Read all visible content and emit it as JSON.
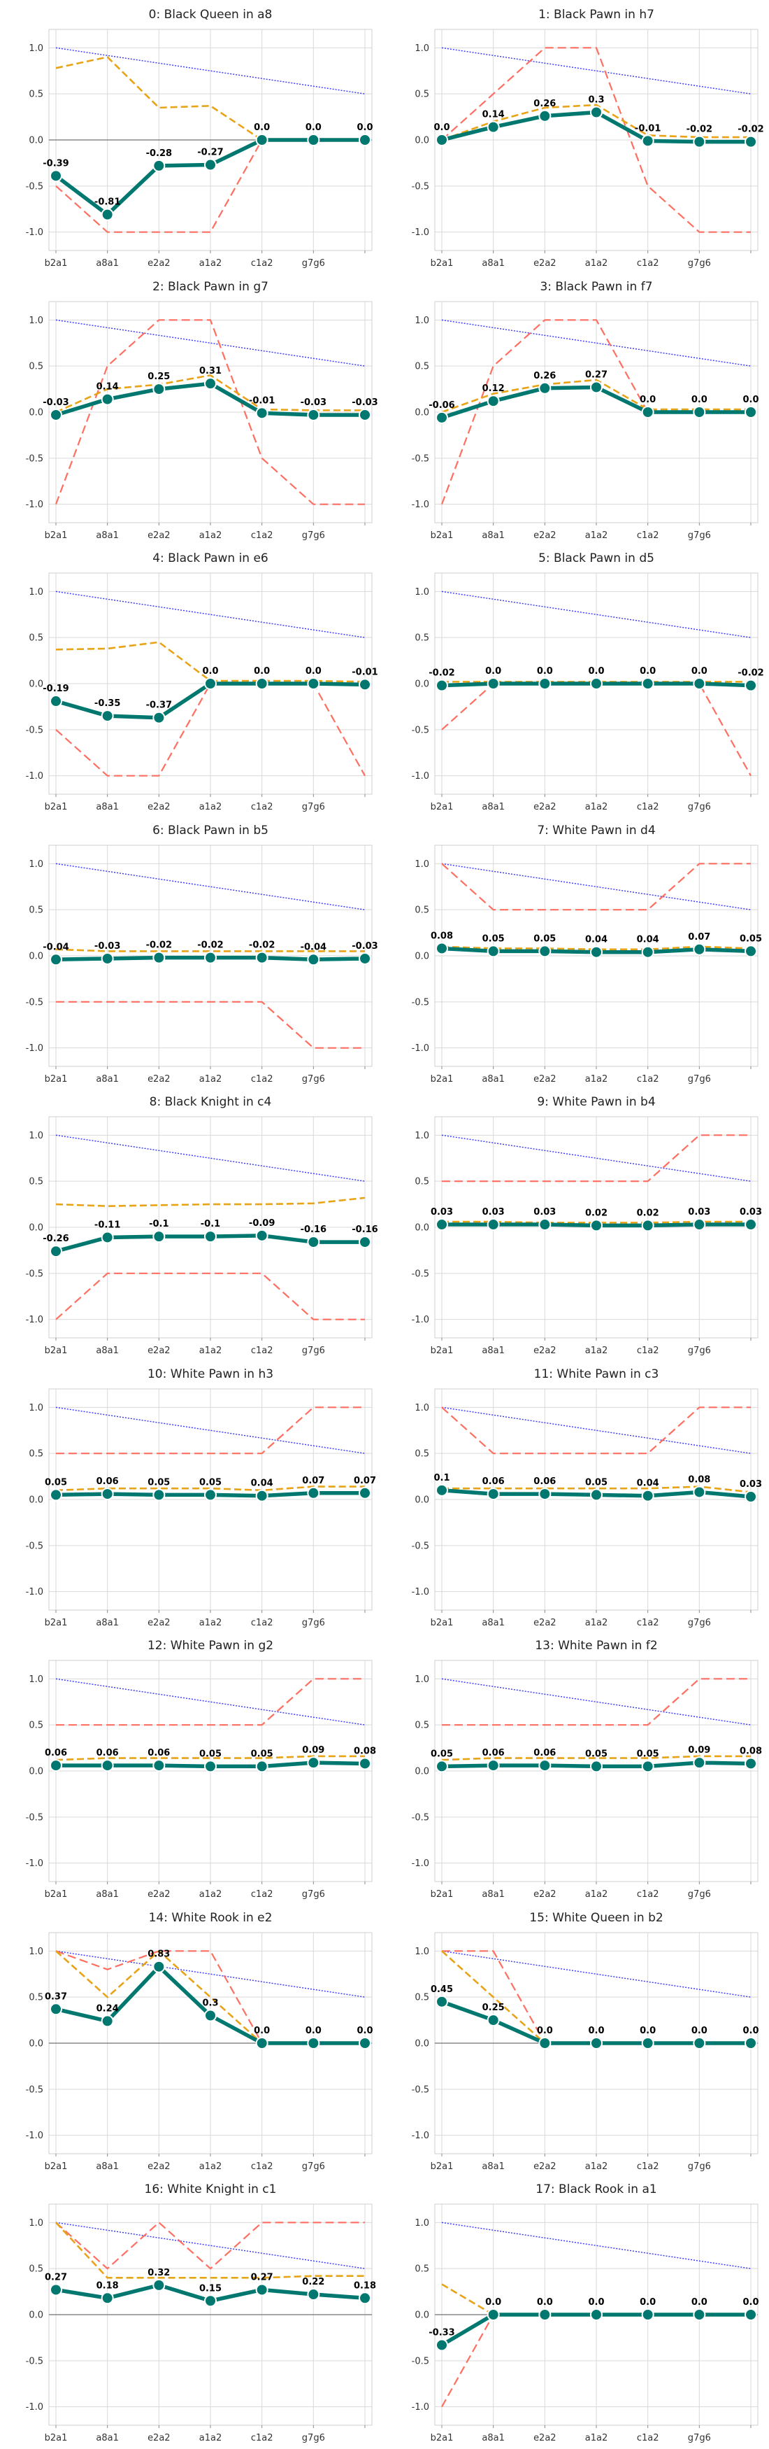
{
  "chart_data": {
    "type": "line",
    "layout": {
      "rows": 9,
      "cols": 2
    },
    "x_categories": [
      "b2a1",
      "a8a1",
      "e2a2",
      "a1a2",
      "c1a2",
      "g7g6",
      ""
    ],
    "y_ticks": [
      "1.0",
      "0.5",
      "0.0",
      "-0.5",
      "-1.0"
    ],
    "ylim": [
      -1.2,
      1.2
    ],
    "colors": {
      "main": "#00786f",
      "main_edge": "#ffffff",
      "orange": "#e8a317",
      "red": "#ff6f61",
      "blue": "#3333ff",
      "zero": "#888888"
    },
    "panels": [
      {
        "title": "0: Black Queen in a8",
        "main": [
          -0.39,
          -0.81,
          -0.28,
          -0.27,
          0.0,
          0.0,
          0.0
        ],
        "labels": [
          "-0.39",
          "-0.81",
          "-0.28",
          "-0.27",
          "0.0",
          "0.0",
          "0.0"
        ],
        "orange": [
          0.78,
          0.9,
          0.35,
          0.37,
          0.0,
          0.0,
          0.0
        ],
        "red": [
          -0.5,
          -1.0,
          -1.0,
          -1.0,
          0.0,
          0.0,
          0.0
        ],
        "blue": [
          1.0,
          0.5
        ],
        "zero_line": true
      },
      {
        "title": "1: Black Pawn in h7",
        "main": [
          0.0,
          0.14,
          0.26,
          0.3,
          -0.01,
          -0.02,
          -0.02
        ],
        "labels": [
          "0.0",
          "0.14",
          "0.26",
          "0.3",
          "-0.01",
          "-0.02",
          "-0.02"
        ],
        "orange": [
          0.0,
          0.2,
          0.35,
          0.38,
          0.05,
          0.03,
          0.03
        ],
        "red": [
          0.0,
          0.5,
          1.0,
          1.0,
          -0.5,
          -1.0,
          -1.0
        ],
        "blue": [
          1.0,
          0.5
        ],
        "zero_line": false
      },
      {
        "title": "2: Black Pawn in g7",
        "main": [
          -0.03,
          0.14,
          0.25,
          0.31,
          -0.01,
          -0.03,
          -0.03
        ],
        "labels": [
          "-0.03",
          "0.14",
          "0.25",
          "0.31",
          "-0.01",
          "-0.03",
          "-0.03"
        ],
        "orange": [
          0.0,
          0.25,
          0.3,
          0.4,
          0.03,
          0.02,
          0.02
        ],
        "red": [
          -1.0,
          0.5,
          1.0,
          1.0,
          -0.5,
          -1.0,
          -1.0
        ],
        "blue": [
          1.0,
          0.5
        ],
        "zero_line": false
      },
      {
        "title": "3: Black Pawn in f7",
        "main": [
          -0.06,
          0.12,
          0.26,
          0.27,
          0.0,
          0.0,
          0.0
        ],
        "labels": [
          "-0.06",
          "0.12",
          "0.26",
          "0.27",
          "0.0",
          "0.0",
          "0.0"
        ],
        "orange": [
          0.0,
          0.2,
          0.3,
          0.35,
          0.03,
          0.03,
          0.03
        ],
        "red": [
          -1.0,
          0.5,
          1.0,
          1.0,
          0.0,
          0.0,
          0.0
        ],
        "blue": [
          1.0,
          0.5
        ],
        "zero_line": false
      },
      {
        "title": "4: Black Pawn in e6",
        "main": [
          -0.19,
          -0.35,
          -0.37,
          0.0,
          0.0,
          0.0,
          -0.01
        ],
        "labels": [
          "-0.19",
          "-0.35",
          "-0.37",
          "0.0",
          "0.0",
          "0.0",
          "-0.01"
        ],
        "orange": [
          0.37,
          0.38,
          0.45,
          0.03,
          0.03,
          0.03,
          0.02
        ],
        "red": [
          -0.5,
          -1.0,
          -1.0,
          0.0,
          0.0,
          0.0,
          -1.0
        ],
        "blue": [
          1.0,
          0.5
        ],
        "zero_line": false
      },
      {
        "title": "5: Black Pawn in d5",
        "main": [
          -0.02,
          0.0,
          0.0,
          0.0,
          0.0,
          0.0,
          -0.02
        ],
        "labels": [
          "-0.02",
          "0.0",
          "0.0",
          "0.0",
          "0.0",
          "0.0",
          "-0.02"
        ],
        "orange": [
          0.02,
          0.02,
          0.02,
          0.02,
          0.02,
          0.02,
          0.02
        ],
        "red": [
          -0.5,
          0.0,
          0.0,
          0.0,
          0.0,
          0.0,
          -1.0
        ],
        "blue": [
          1.0,
          0.5
        ],
        "zero_line": false
      },
      {
        "title": "6: Black Pawn in b5",
        "main": [
          -0.04,
          -0.03,
          -0.02,
          -0.02,
          -0.02,
          -0.04,
          -0.03
        ],
        "labels": [
          "-0.04",
          "-0.03",
          "-0.02",
          "-0.02",
          "-0.02",
          "-0.04",
          "-0.03"
        ],
        "orange": [
          0.07,
          0.05,
          0.05,
          0.05,
          0.05,
          0.05,
          0.05
        ],
        "red": [
          -0.5,
          -0.5,
          -0.5,
          -0.5,
          -0.5,
          -1.0,
          -1.0
        ],
        "blue": [
          1.0,
          0.5
        ],
        "zero_line": false
      },
      {
        "title": "7: White Pawn in d4",
        "main": [
          0.08,
          0.05,
          0.05,
          0.04,
          0.04,
          0.07,
          0.05
        ],
        "labels": [
          "0.08",
          "0.05",
          "0.05",
          "0.04",
          "0.04",
          "0.07",
          "0.05"
        ],
        "orange": [
          0.1,
          0.08,
          0.08,
          0.07,
          0.07,
          0.1,
          0.08
        ],
        "red": [
          1.0,
          0.5,
          0.5,
          0.5,
          0.5,
          1.0,
          1.0
        ],
        "blue": [
          1.0,
          0.5
        ],
        "zero_line": false
      },
      {
        "title": "8: Black Knight in c4",
        "main": [
          -0.26,
          -0.11,
          -0.1,
          -0.1,
          -0.09,
          -0.16,
          -0.16
        ],
        "labels": [
          "-0.26",
          "-0.11",
          "-0.1",
          "-0.1",
          "-0.09",
          "-0.16",
          "-0.16"
        ],
        "orange": [
          0.25,
          0.23,
          0.24,
          0.25,
          0.25,
          0.26,
          0.32
        ],
        "red": [
          -1.0,
          -0.5,
          -0.5,
          -0.5,
          -0.5,
          -1.0,
          -1.0
        ],
        "blue": [
          1.0,
          0.5
        ],
        "zero_line": false
      },
      {
        "title": "9: White Pawn in b4",
        "main": [
          0.03,
          0.03,
          0.03,
          0.02,
          0.02,
          0.03,
          0.03
        ],
        "labels": [
          "0.03",
          "0.03",
          "0.03",
          "0.02",
          "0.02",
          "0.03",
          "0.03"
        ],
        "orange": [
          0.06,
          0.06,
          0.05,
          0.05,
          0.05,
          0.06,
          0.06
        ],
        "red": [
          0.5,
          0.5,
          0.5,
          0.5,
          0.5,
          1.0,
          1.0
        ],
        "blue": [
          1.0,
          0.5
        ],
        "zero_line": false
      },
      {
        "title": "10: White Pawn in h3",
        "main": [
          0.05,
          0.06,
          0.05,
          0.05,
          0.04,
          0.07,
          0.07
        ],
        "labels": [
          "0.05",
          "0.06",
          "0.05",
          "0.05",
          "0.04",
          "0.07",
          "0.07"
        ],
        "orange": [
          0.1,
          0.12,
          0.12,
          0.12,
          0.1,
          0.14,
          0.14
        ],
        "red": [
          0.5,
          0.5,
          0.5,
          0.5,
          0.5,
          1.0,
          1.0
        ],
        "blue": [
          1.0,
          0.5
        ],
        "zero_line": false
      },
      {
        "title": "11: White Pawn in c3",
        "main": [
          0.1,
          0.06,
          0.06,
          0.05,
          0.04,
          0.08,
          0.03
        ],
        "labels": [
          "0.1",
          "0.06",
          "0.06",
          "0.05",
          "0.04",
          "0.08",
          "0.03"
        ],
        "orange": [
          0.12,
          0.12,
          0.12,
          0.12,
          0.12,
          0.14,
          0.08
        ],
        "red": [
          1.0,
          0.5,
          0.5,
          0.5,
          0.5,
          1.0,
          1.0
        ],
        "blue": [
          1.0,
          0.5
        ],
        "zero_line": false
      },
      {
        "title": "12: White Pawn in g2",
        "main": [
          0.06,
          0.06,
          0.06,
          0.05,
          0.05,
          0.09,
          0.08
        ],
        "labels": [
          "0.06",
          "0.06",
          "0.06",
          "0.05",
          "0.05",
          "0.09",
          "0.08"
        ],
        "orange": [
          0.12,
          0.14,
          0.14,
          0.14,
          0.14,
          0.16,
          0.16
        ],
        "red": [
          0.5,
          0.5,
          0.5,
          0.5,
          0.5,
          1.0,
          1.0
        ],
        "blue": [
          1.0,
          0.5
        ],
        "zero_line": false
      },
      {
        "title": "13: White Pawn in f2",
        "main": [
          0.05,
          0.06,
          0.06,
          0.05,
          0.05,
          0.09,
          0.08
        ],
        "labels": [
          "0.05",
          "0.06",
          "0.06",
          "0.05",
          "0.05",
          "0.09",
          "0.08"
        ],
        "orange": [
          0.12,
          0.14,
          0.14,
          0.14,
          0.14,
          0.16,
          0.16
        ],
        "red": [
          0.5,
          0.5,
          0.5,
          0.5,
          0.5,
          1.0,
          1.0
        ],
        "blue": [
          1.0,
          0.5
        ],
        "zero_line": false
      },
      {
        "title": "14: White Rook in e2",
        "main": [
          0.37,
          0.24,
          0.83,
          0.3,
          0.0,
          0.0,
          0.0
        ],
        "labels": [
          "0.37",
          "0.24",
          "0.83",
          "0.3",
          "0.0",
          "0.0",
          "0.0"
        ],
        "orange": [
          1.0,
          0.5,
          1.0,
          0.5,
          0.0,
          0.0,
          0.0
        ],
        "red": [
          1.0,
          0.8,
          1.0,
          1.0,
          0.0,
          0.0,
          0.0
        ],
        "blue": [
          1.0,
          0.5
        ],
        "zero_line": true
      },
      {
        "title": "15: White Queen in b2",
        "main": [
          0.45,
          0.25,
          0.0,
          0.0,
          0.0,
          0.0,
          0.0
        ],
        "labels": [
          "0.45",
          "0.25",
          "0.0",
          "0.0",
          "0.0",
          "0.0",
          "0.0"
        ],
        "orange": [
          1.0,
          0.5,
          0.0,
          0.0,
          0.0,
          0.0,
          0.0
        ],
        "red": [
          1.0,
          1.0,
          0.0,
          0.0,
          0.0,
          0.0,
          0.0
        ],
        "blue": [
          1.0,
          0.5
        ],
        "zero_line": true
      },
      {
        "title": "16: White Knight in c1",
        "main": [
          0.27,
          0.18,
          0.32,
          0.15,
          0.27,
          0.22,
          0.18
        ],
        "labels": [
          "0.27",
          "0.18",
          "0.32",
          "0.15",
          "0.27",
          "0.22",
          "0.18"
        ],
        "orange": [
          1.0,
          0.4,
          0.4,
          0.4,
          0.4,
          0.42,
          0.42
        ],
        "red": [
          1.0,
          0.5,
          1.0,
          0.5,
          1.0,
          1.0,
          1.0
        ],
        "blue": [
          1.0,
          0.5
        ],
        "zero_line": true
      },
      {
        "title": "17: Black Rook in a1",
        "main": [
          -0.33,
          0.0,
          0.0,
          0.0,
          0.0,
          0.0,
          0.0
        ],
        "labels": [
          "-0.33",
          "0.0",
          "0.0",
          "0.0",
          "0.0",
          "0.0",
          "0.0"
        ],
        "orange": [
          0.33,
          0.0,
          0.0,
          0.0,
          0.0,
          0.0,
          0.0
        ],
        "red": [
          -1.0,
          0.0,
          0.0,
          0.0,
          0.0,
          0.0,
          0.0
        ],
        "blue": [
          1.0,
          0.5
        ],
        "zero_line": true
      }
    ]
  }
}
